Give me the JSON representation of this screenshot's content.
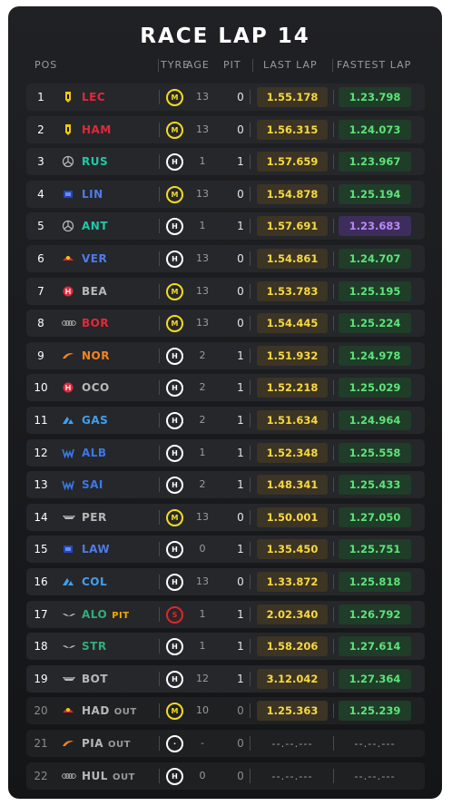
{
  "title": "RACE LAP 14",
  "columns": {
    "pos": "POS",
    "tyre": "TYRE",
    "age": "AGE",
    "pit": "PIT",
    "last": "LAST LAP",
    "fastest": "FASTEST LAP"
  },
  "colors": {
    "medium_tyre": "#f5dc1e",
    "hard_tyre": "#ffffff",
    "soft_tyre": "#e0262b",
    "last_lap_text": "#f7d842",
    "fastest_lap_text": "#5ee37a",
    "overall_best_text": "#b98af5"
  },
  "rows": [
    {
      "pos": "1",
      "team": "ferrari",
      "code": "LEC",
      "color": "#e2283b",
      "tag": "",
      "tyre": "M",
      "age": "13",
      "pit": "0",
      "last": "1.55.178",
      "fastest": "1.23.798",
      "best": false,
      "out": false
    },
    {
      "pos": "2",
      "team": "ferrari",
      "code": "HAM",
      "color": "#e2283b",
      "tag": "",
      "tyre": "M",
      "age": "13",
      "pit": "0",
      "last": "1.56.315",
      "fastest": "1.24.073",
      "best": false,
      "out": false
    },
    {
      "pos": "3",
      "team": "mercedes",
      "code": "RUS",
      "color": "#22c7a8",
      "tag": "",
      "tyre": "H",
      "age": "1",
      "pit": "1",
      "last": "1.57.659",
      "fastest": "1.23.967",
      "best": false,
      "out": false
    },
    {
      "pos": "4",
      "team": "racing-bulls",
      "code": "LIN",
      "color": "#4f7be8",
      "tag": "",
      "tyre": "M",
      "age": "13",
      "pit": "0",
      "last": "1.54.878",
      "fastest": "1.25.194",
      "best": false,
      "out": false
    },
    {
      "pos": "5",
      "team": "mercedes",
      "code": "ANT",
      "color": "#22c7a8",
      "tag": "",
      "tyre": "H",
      "age": "1",
      "pit": "1",
      "last": "1.57.691",
      "fastest": "1.23.683",
      "best": true,
      "out": false
    },
    {
      "pos": "6",
      "team": "red-bull",
      "code": "VER",
      "color": "#4f7be8",
      "tag": "",
      "tyre": "H",
      "age": "13",
      "pit": "0",
      "last": "1.54.861",
      "fastest": "1.24.707",
      "best": false,
      "out": false
    },
    {
      "pos": "7",
      "team": "haas",
      "code": "BEA",
      "color": "#b8b8b8",
      "tag": "",
      "tyre": "M",
      "age": "13",
      "pit": "0",
      "last": "1.53.783",
      "fastest": "1.25.195",
      "best": false,
      "out": false
    },
    {
      "pos": "8",
      "team": "audi",
      "code": "BOR",
      "color": "#e2283b",
      "tag": "",
      "tyre": "M",
      "age": "13",
      "pit": "0",
      "last": "1.54.445",
      "fastest": "1.25.224",
      "best": false,
      "out": false
    },
    {
      "pos": "9",
      "team": "mclaren",
      "code": "NOR",
      "color": "#f58420",
      "tag": "",
      "tyre": "H",
      "age": "2",
      "pit": "1",
      "last": "1.51.932",
      "fastest": "1.24.978",
      "best": false,
      "out": false
    },
    {
      "pos": "10",
      "team": "haas",
      "code": "OCO",
      "color": "#b8b8b8",
      "tag": "",
      "tyre": "H",
      "age": "2",
      "pit": "1",
      "last": "1.52.218",
      "fastest": "1.25.029",
      "best": false,
      "out": false
    },
    {
      "pos": "11",
      "team": "alpine",
      "code": "GAS",
      "color": "#3ea0f0",
      "tag": "",
      "tyre": "H",
      "age": "2",
      "pit": "1",
      "last": "1.51.634",
      "fastest": "1.24.964",
      "best": false,
      "out": false
    },
    {
      "pos": "12",
      "team": "williams",
      "code": "ALB",
      "color": "#3a78e8",
      "tag": "",
      "tyre": "H",
      "age": "1",
      "pit": "1",
      "last": "1.52.348",
      "fastest": "1.25.558",
      "best": false,
      "out": false
    },
    {
      "pos": "13",
      "team": "williams",
      "code": "SAI",
      "color": "#3a78e8",
      "tag": "",
      "tyre": "H",
      "age": "2",
      "pit": "1",
      "last": "1.48.341",
      "fastest": "1.25.433",
      "best": false,
      "out": false
    },
    {
      "pos": "14",
      "team": "cadillac",
      "code": "PER",
      "color": "#b8b8b8",
      "tag": "",
      "tyre": "M",
      "age": "13",
      "pit": "0",
      "last": "1.50.001",
      "fastest": "1.27.050",
      "best": false,
      "out": false
    },
    {
      "pos": "15",
      "team": "racing-bulls",
      "code": "LAW",
      "color": "#4f7be8",
      "tag": "",
      "tyre": "H",
      "age": "0",
      "pit": "1",
      "last": "1.35.450",
      "fastest": "1.25.751",
      "best": false,
      "out": false
    },
    {
      "pos": "16",
      "team": "alpine",
      "code": "COL",
      "color": "#3ea0f0",
      "tag": "",
      "tyre": "H",
      "age": "13",
      "pit": "0",
      "last": "1.33.872",
      "fastest": "1.25.818",
      "best": false,
      "out": false
    },
    {
      "pos": "17",
      "team": "aston-martin",
      "code": "ALO",
      "color": "#2fae7c",
      "tag": "PIT",
      "tyre": "S",
      "age": "1",
      "pit": "1",
      "last": "2.02.340",
      "fastest": "1.26.792",
      "best": false,
      "out": false
    },
    {
      "pos": "18",
      "team": "aston-martin",
      "code": "STR",
      "color": "#2fae7c",
      "tag": "",
      "tyre": "H",
      "age": "1",
      "pit": "1",
      "last": "1.58.206",
      "fastest": "1.27.614",
      "best": false,
      "out": false
    },
    {
      "pos": "19",
      "team": "cadillac",
      "code": "BOT",
      "color": "#b8b8b8",
      "tag": "",
      "tyre": "H",
      "age": "12",
      "pit": "1",
      "last": "3.12.042",
      "fastest": "1.27.364",
      "best": false,
      "out": false
    },
    {
      "pos": "20",
      "team": "red-bull",
      "code": "HAD",
      "color": "#b8b8b8",
      "tag": "OUT",
      "tyre": "M",
      "age": "10",
      "pit": "0",
      "last": "1.25.363",
      "fastest": "1.25.239",
      "best": false,
      "out": true
    },
    {
      "pos": "21",
      "team": "mclaren",
      "code": "PIA",
      "color": "#b8b8b8",
      "tag": "OUT",
      "tyre": "X",
      "age": "-",
      "pit": "0",
      "last": "--.--.---",
      "fastest": "--.--.---",
      "best": false,
      "out": true
    },
    {
      "pos": "22",
      "team": "audi",
      "code": "HUL",
      "color": "#b8b8b8",
      "tag": "OUT",
      "tyre": "H",
      "age": "0",
      "pit": "0",
      "last": "--.--.---",
      "fastest": "--.--.---",
      "best": false,
      "out": true
    }
  ]
}
